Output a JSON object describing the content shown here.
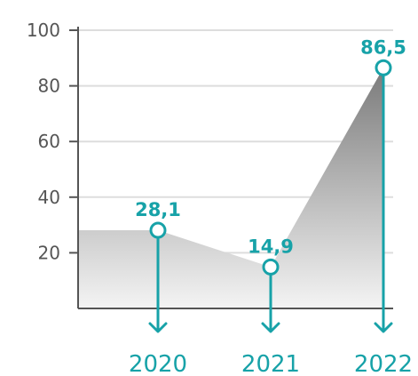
{
  "chart_data": {
    "type": "area",
    "categories": [
      "2020",
      "2021",
      "2022"
    ],
    "values": [
      28.1,
      14.9,
      86.5
    ],
    "data_labels": [
      "28,1",
      "14,9",
      "86,5"
    ],
    "yticks": [
      20,
      40,
      60,
      80,
      100
    ],
    "ylim": [
      0,
      100
    ],
    "title": "",
    "xlabel": "",
    "ylabel": "",
    "grid": true,
    "colors": {
      "accent": "#17a2a8",
      "axis": "#555555",
      "grid": "#dddddd",
      "area_light": "#f2f2f2",
      "area_dark": "#7a7a7a"
    }
  }
}
